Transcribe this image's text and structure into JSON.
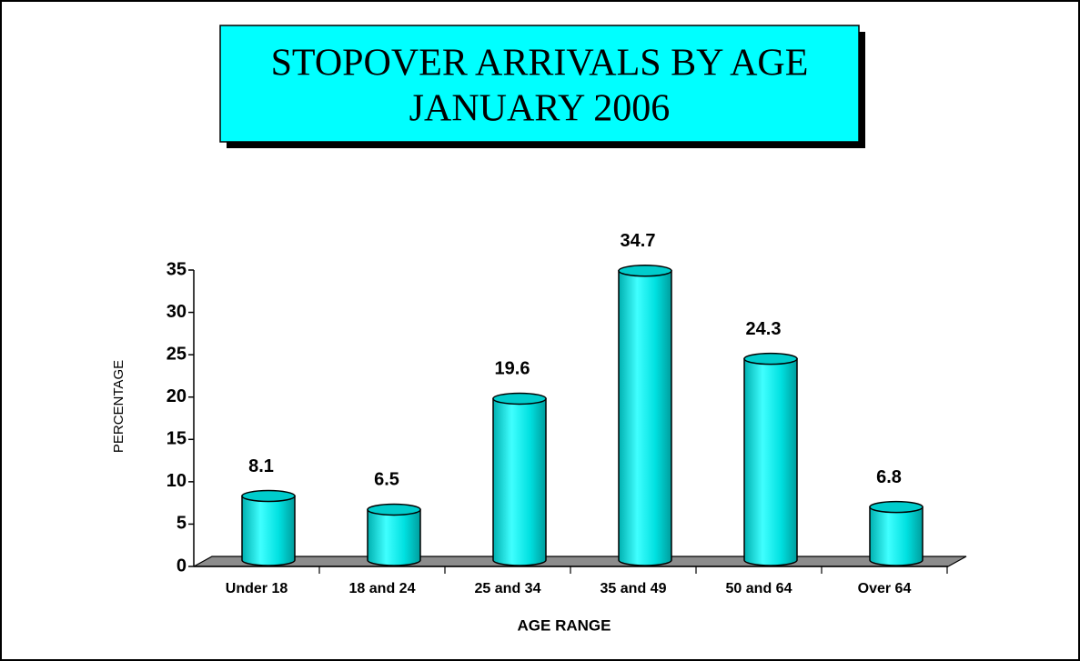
{
  "chart_data": {
    "type": "bar",
    "title": "STOPOVER ARRIVALS BY AGE",
    "subtitle": "JANUARY 2006",
    "x_label": "AGE RANGE",
    "y_label": "PERCENTAGE",
    "categories": [
      "Under 18",
      "18 and 24",
      "25 and 34",
      "35 and 49",
      "50 and 64",
      "Over 64"
    ],
    "values": [
      8.1,
      6.5,
      19.6,
      34.7,
      24.3,
      6.8
    ],
    "color": "#00e5e5",
    "ylim": [
      0,
      35
    ],
    "yticks": [
      0,
      5,
      10,
      15,
      20,
      25,
      30,
      35
    ]
  }
}
